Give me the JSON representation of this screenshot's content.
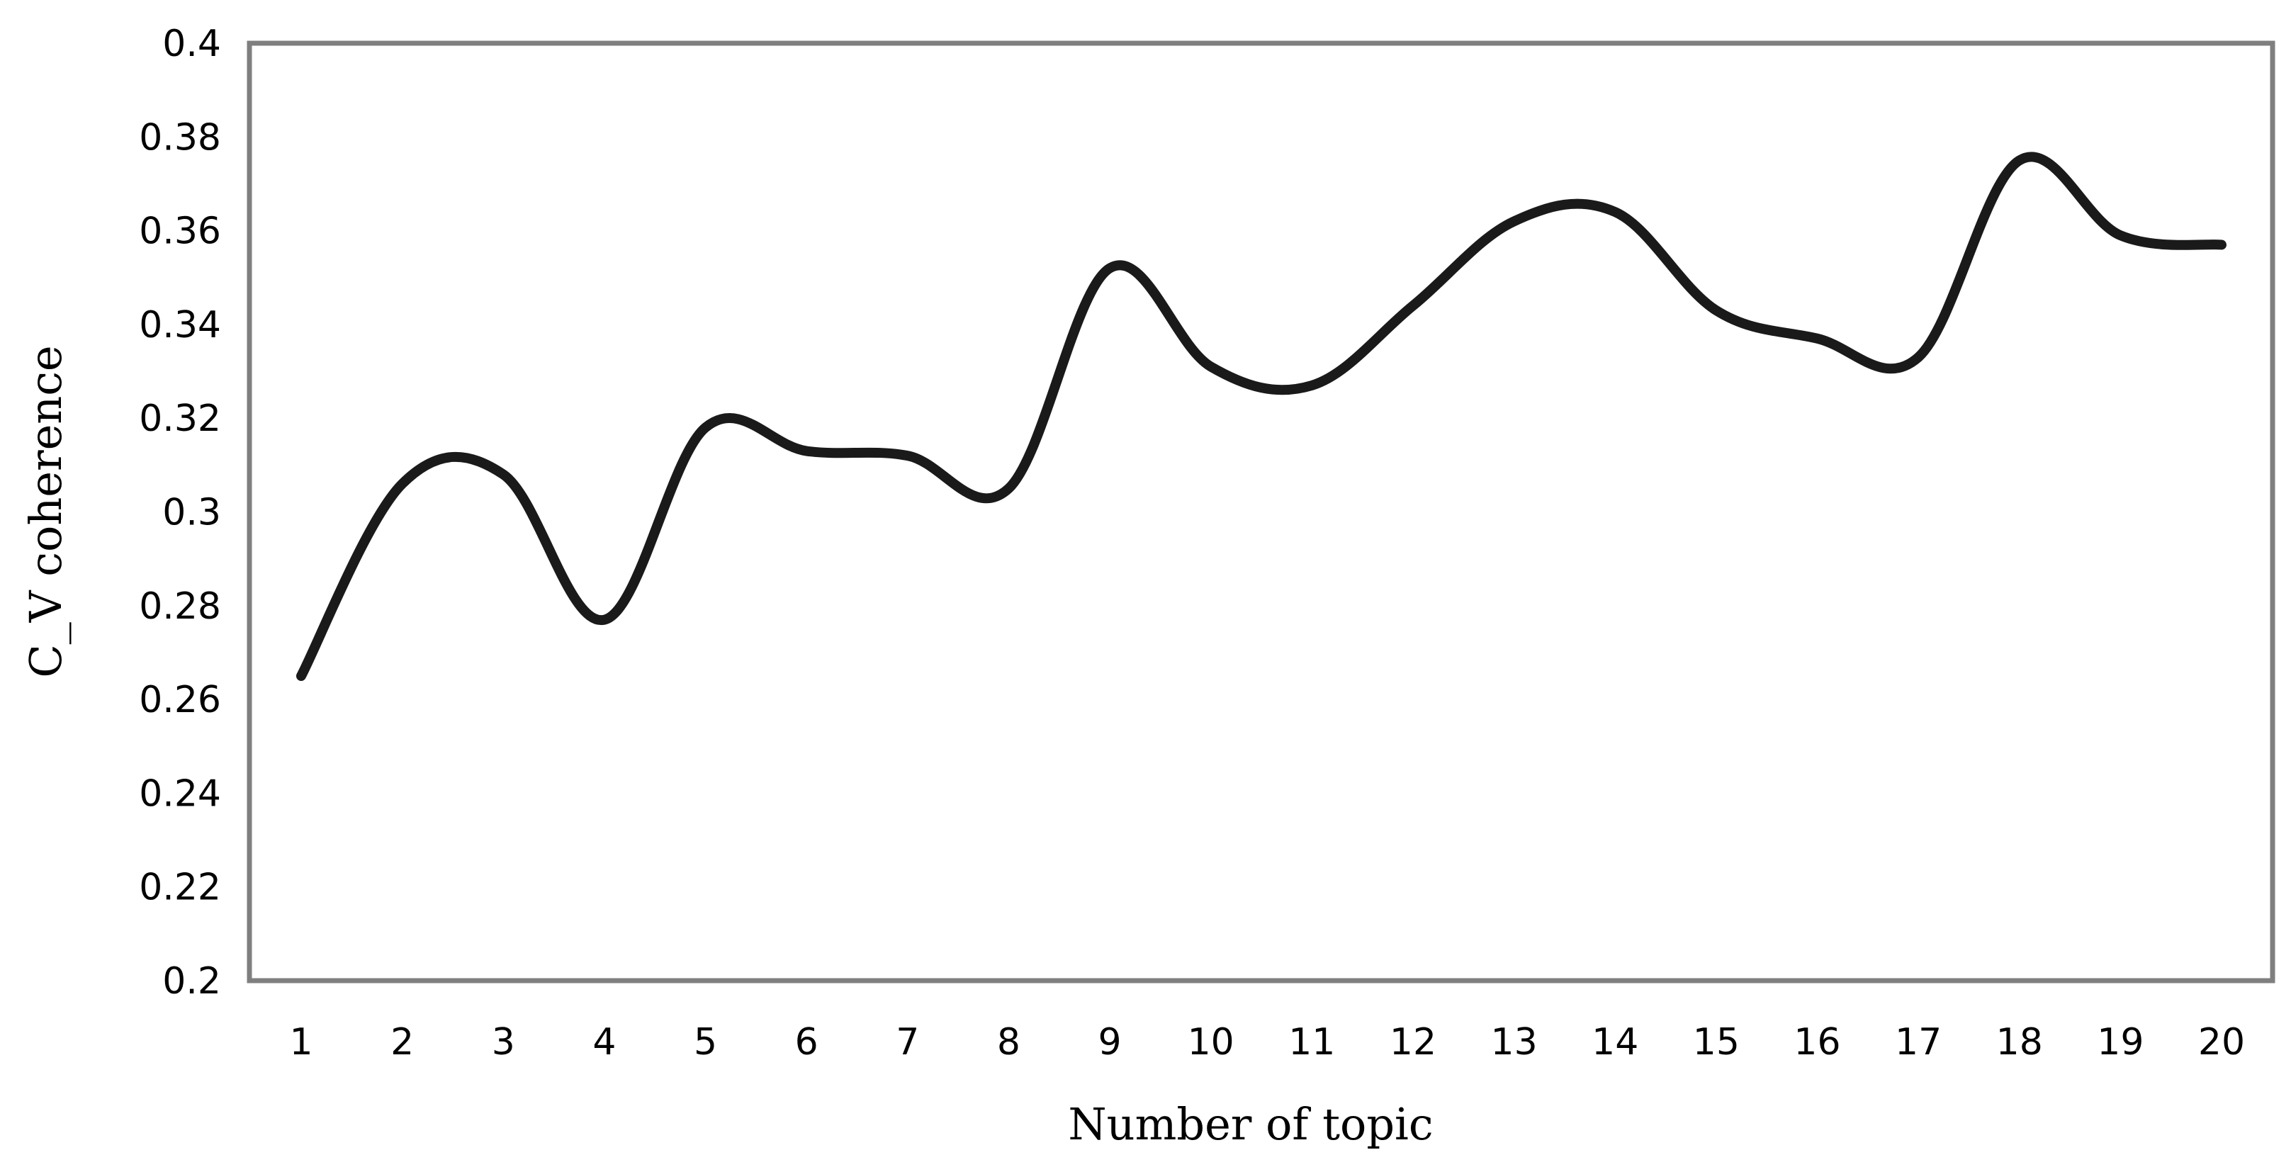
{
  "chart_data": {
    "type": "line",
    "title": "",
    "xlabel": "Number of topic",
    "ylabel": "C_V coherence",
    "categories": [
      "1",
      "2",
      "3",
      "4",
      "5",
      "6",
      "7",
      "8",
      "9",
      "10",
      "11",
      "12",
      "13",
      "14",
      "15",
      "16",
      "17",
      "18",
      "19",
      "20"
    ],
    "y_ticks": [
      "0.2",
      "0.22",
      "0.24",
      "0.26",
      "0.28",
      "0.3",
      "0.32",
      "0.34",
      "0.36",
      "0.38",
      "0.4"
    ],
    "ylim": [
      0.2,
      0.4
    ],
    "grid": false,
    "legend": "none",
    "series": [
      {
        "values": [
          0.265,
          0.306,
          0.308,
          0.277,
          0.318,
          0.313,
          0.312,
          0.305,
          0.352,
          0.331,
          0.327,
          0.344,
          0.362,
          0.364,
          0.343,
          0.337,
          0.333,
          0.375,
          0.359,
          0.357
        ],
        "color": "#1a1a1a"
      }
    ],
    "colors": {
      "line": "#1a1a1a",
      "frame": "#7f7f7f"
    }
  }
}
